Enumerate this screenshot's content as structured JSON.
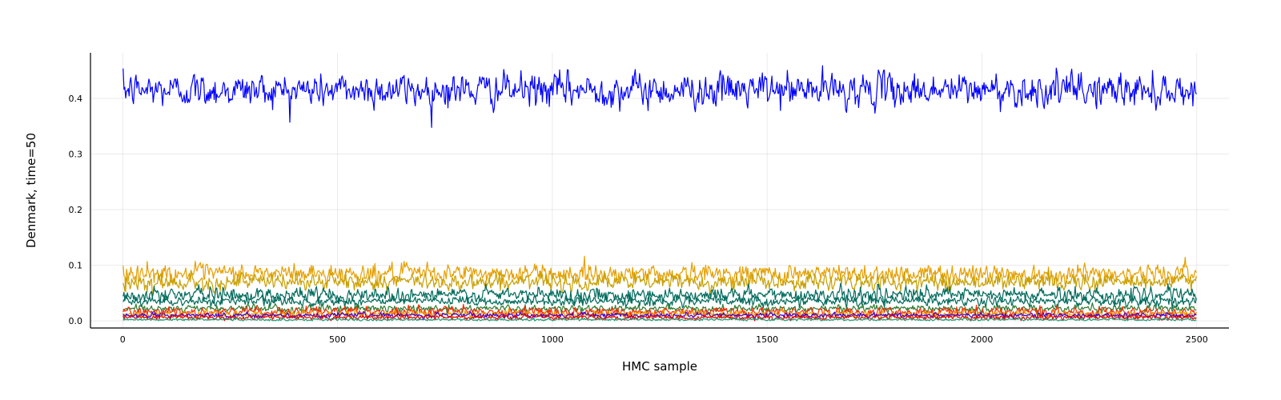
{
  "chart_data": {
    "type": "line",
    "title": "",
    "xlabel": "HMC sample",
    "ylabel": "Denmark, time=50",
    "xlim": [
      -75,
      2575
    ],
    "ylim": [
      -0.013,
      0.482
    ],
    "x_ticks": [
      0,
      500,
      1000,
      1500,
      2000,
      2500
    ],
    "y_ticks": [
      0.0,
      0.1,
      0.2,
      0.3,
      0.4
    ],
    "y_tick_labels": [
      "0.0",
      "0.1",
      "0.2",
      "0.3",
      "0.4"
    ],
    "grid": true,
    "legend": "none",
    "n_samples": 2500,
    "series": [
      {
        "color": "#0000ff",
        "mean": 0.415,
        "sd": 0.014
      },
      {
        "color": "#e69f00",
        "mean": 0.085,
        "sd": 0.008
      },
      {
        "color": "#c8a000",
        "mean": 0.07,
        "sd": 0.007
      },
      {
        "color": "#006b5c",
        "mean": 0.047,
        "sd": 0.006
      },
      {
        "color": "#006b5c",
        "mean": 0.035,
        "sd": 0.004
      },
      {
        "color": "#2e7d32",
        "mean": 0.022,
        "sd": 0.003
      },
      {
        "color": "#ff2a00",
        "mean": 0.016,
        "sd": 0.004
      },
      {
        "color": "#e69f00",
        "mean": 0.012,
        "sd": 0.003
      },
      {
        "color": "#3b00d6",
        "mean": 0.01,
        "sd": 0.002
      },
      {
        "color": "#e60000",
        "mean": 0.006,
        "sd": 0.002
      },
      {
        "color": "#1b9e77",
        "mean": 0.002,
        "sd": 0.001
      }
    ]
  }
}
